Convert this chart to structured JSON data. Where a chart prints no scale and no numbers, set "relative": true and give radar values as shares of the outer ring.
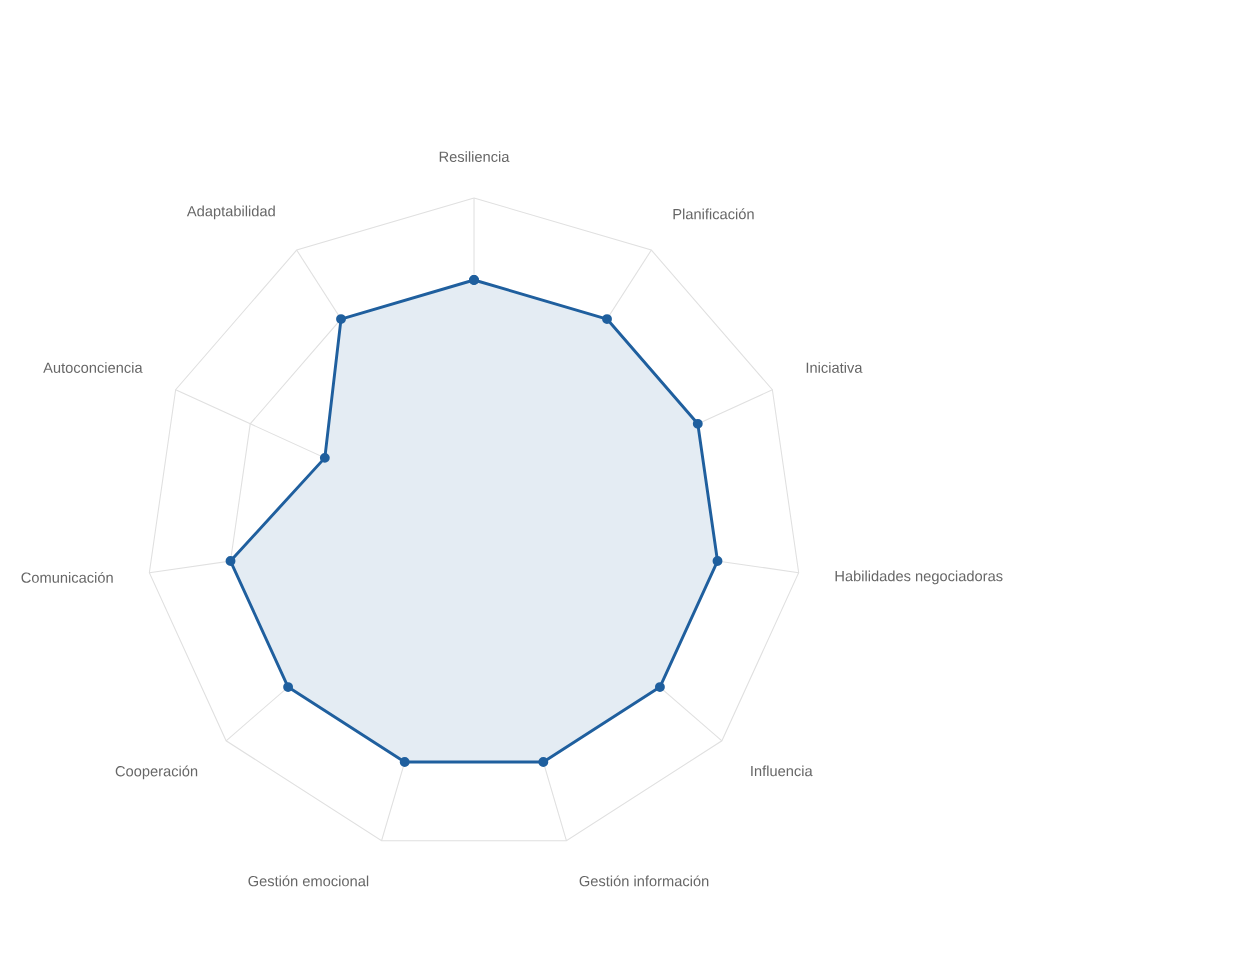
{
  "chart_data": {
    "type": "radar",
    "relative": true,
    "grid": true,
    "marker": "circle",
    "line_style": "solid",
    "categories": [
      "Resiliencia",
      "Planificación",
      "Iniciativa",
      "Habilidades negociadoras",
      "Influencia",
      "Gestión información",
      "Gestión emocional",
      "Cooperación",
      "Comunicación",
      "Autoconciencia",
      "Adaptabilidad"
    ],
    "series": [
      {
        "color": "#1f5f9e",
        "values": [
          0.75,
          0.75,
          0.75,
          0.75,
          0.75,
          0.75,
          0.75,
          0.75,
          0.75,
          0.5,
          0.75
        ]
      }
    ]
  }
}
